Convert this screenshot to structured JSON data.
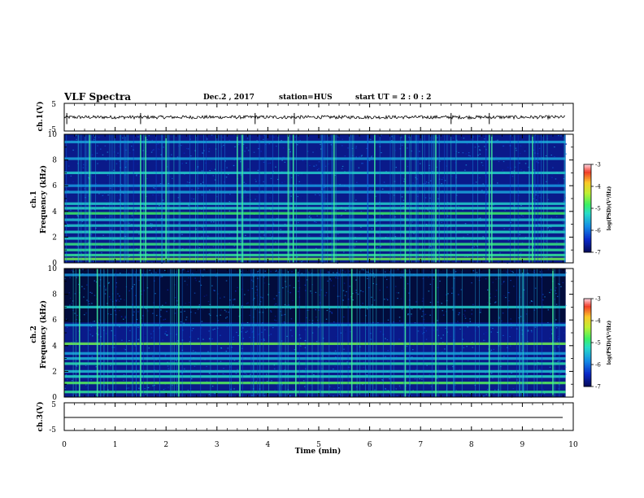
{
  "header": {
    "title": "VLF Spectra",
    "date": "Dec.2 , 2017",
    "station": "station=HUS",
    "start_ut": "start UT =  2 : 0 : 2"
  },
  "colors": {
    "frame": "#000000",
    "spec_background": "#0a1a8a",
    "spec_dark": "#000822",
    "band_cyan": "#2fc8e0",
    "band_green": "#48f070",
    "band_yellow_green": "#b8f040",
    "burst_green": "#40f0a0"
  },
  "chart_data": [
    {
      "type": "line",
      "panel": "ch1 waveform",
      "ylabel": "ch.1(V)",
      "ylim": [
        -5,
        5
      ],
      "y_ticks": [
        "5",
        "-5"
      ],
      "xlim": [
        0,
        10
      ],
      "series": [
        {
          "baseline_v": 0.0,
          "noise_amplitude_v": 0.6,
          "spikes_min": [
            0.05,
            1.5,
            3.75,
            4.52,
            7.6,
            8.35
          ]
        }
      ]
    },
    {
      "type": "heatmap",
      "panel": "ch1 spectrogram",
      "ylabel": "ch.1 Frequency (kHz)",
      "ylim": [
        0,
        10
      ],
      "y_ticks": [
        "0",
        "2",
        "4",
        "6",
        "8",
        "10"
      ],
      "xlim": [
        0,
        10
      ],
      "data_end_min": 9.85,
      "colorbar": {
        "label": "log(PSD)(V²/Hz)",
        "range": [
          -7,
          -3
        ],
        "ticks": [
          "-3",
          "-4",
          "-5",
          "-6",
          "-7"
        ]
      },
      "bands_khz": [
        {
          "f": 0.3,
          "level": -4.6
        },
        {
          "f": 0.6,
          "level": -5.0
        },
        {
          "f": 1.0,
          "level": -5.0
        },
        {
          "f": 1.45,
          "level": -4.9
        },
        {
          "f": 1.9,
          "level": -5.2
        },
        {
          "f": 2.4,
          "level": -5.2
        },
        {
          "f": 2.9,
          "level": -5.3
        },
        {
          "f": 3.35,
          "level": -5.4
        },
        {
          "f": 3.85,
          "level": -4.8
        },
        {
          "f": 4.25,
          "level": -5.2
        },
        {
          "f": 4.6,
          "level": -5.3
        },
        {
          "f": 5.5,
          "level": -5.6
        },
        {
          "f": 6.0,
          "level": -5.7
        },
        {
          "f": 7.0,
          "level": -5.3
        },
        {
          "f": 8.1,
          "level": -5.6
        },
        {
          "f": 9.4,
          "level": -5.6
        }
      ],
      "bursts_min": [
        0.5,
        1.5,
        1.6,
        2.0,
        3.4,
        3.5,
        4.4,
        4.5,
        5.3,
        6.1,
        6.7,
        7.3,
        8.35,
        8.4,
        9.2
      ]
    },
    {
      "type": "heatmap",
      "panel": "ch2 spectrogram",
      "ylabel": "ch.2 Frequency (kHz)",
      "ylim": [
        0,
        10
      ],
      "y_ticks": [
        "0",
        "2",
        "4",
        "6",
        "8",
        "10"
      ],
      "xlim": [
        0,
        10
      ],
      "data_end_min": 9.85,
      "colorbar": {
        "label": "log(PSD)(V²/Hz)",
        "range": [
          -7,
          -3
        ],
        "ticks": [
          "-3",
          "-4",
          "-5",
          "-6",
          "-7"
        ]
      },
      "bands_khz": [
        {
          "f": 0.4,
          "level": -5.0
        },
        {
          "f": 1.1,
          "level": -4.7
        },
        {
          "f": 1.6,
          "level": -5.2
        },
        {
          "f": 2.0,
          "level": -5.4
        },
        {
          "f": 2.6,
          "level": -5.1
        },
        {
          "f": 3.0,
          "level": -5.5
        },
        {
          "f": 3.4,
          "level": -5.6
        },
        {
          "f": 4.15,
          "level": -4.6
        },
        {
          "f": 5.6,
          "level": -5.6
        },
        {
          "f": 7.0,
          "level": -5.3
        },
        {
          "f": 9.5,
          "level": -5.7
        }
      ],
      "bursts_min": [
        0.3,
        0.65,
        1.5,
        2.25,
        3.45,
        4.55,
        5.65,
        6.7,
        7.3,
        8.35,
        9.6
      ]
    },
    {
      "type": "line",
      "panel": "ch3 waveform",
      "ylabel": "ch.3(V)",
      "ylim": [
        -5,
        5
      ],
      "y_ticks": [
        "5",
        "-5"
      ],
      "xlim": [
        0,
        10
      ],
      "series": [
        {
          "baseline_v": -1.0,
          "noise_amplitude_v": 0.0
        }
      ]
    }
  ],
  "x_axis": {
    "label": "Time  (min)",
    "ticks": [
      "0",
      "1",
      "2",
      "3",
      "4",
      "5",
      "6",
      "7",
      "8",
      "9",
      "10"
    ]
  }
}
